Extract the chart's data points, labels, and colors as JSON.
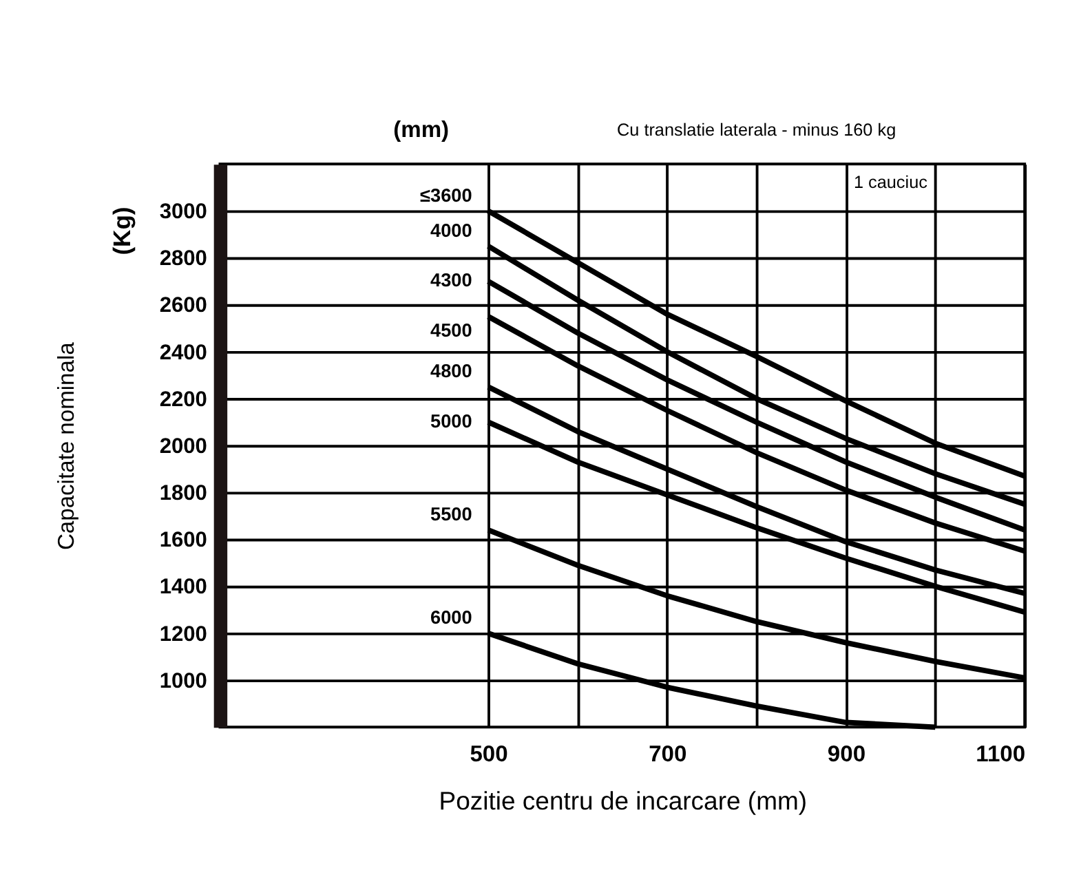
{
  "chart_data": {
    "type": "line",
    "xlabel": "Pozitie centru de incarcare (mm)",
    "ylabel": "Capacitate nominala",
    "annotations": [
      "(Kg)",
      "(mm)",
      "Cu translatie laterala - minus 160 kg",
      "1 cauciuc"
    ],
    "x": [
      500,
      600,
      700,
      800,
      900,
      1000,
      1100
    ],
    "series": [
      {
        "name": "≤3600",
        "color": "#000000",
        "values": [
          3000,
          2780,
          2560,
          2380,
          2190,
          2010,
          1870
        ]
      },
      {
        "name": "4000",
        "color": "#000000",
        "values": [
          2850,
          2620,
          2400,
          2200,
          2030,
          1880,
          1750
        ]
      },
      {
        "name": "4300",
        "color": "#000000",
        "values": [
          2700,
          2480,
          2280,
          2100,
          1930,
          1780,
          1640
        ]
      },
      {
        "name": "4500",
        "color": "#000000",
        "values": [
          2550,
          2340,
          2150,
          1970,
          1810,
          1670,
          1550
        ]
      },
      {
        "name": "4800",
        "color": "#000000",
        "values": [
          2250,
          2060,
          1900,
          1740,
          1590,
          1470,
          1370
        ]
      },
      {
        "name": "5000",
        "color": "#000000",
        "values": [
          2100,
          1930,
          1790,
          1650,
          1520,
          1400,
          1290
        ]
      },
      {
        "name": "5500",
        "color": "#000000",
        "values": [
          1640,
          1490,
          1360,
          1250,
          1160,
          1080,
          1010
        ]
      },
      {
        "name": "6000",
        "color": "#000000",
        "values": [
          1200,
          1070,
          970,
          890,
          820,
          800,
          null
        ]
      }
    ],
    "xlim": [
      200,
      1100
    ],
    "ylim": [
      800,
      3200
    ],
    "xticks": [
      500,
      {
        "value": 600,
        "label": null
      },
      700,
      {
        "value": 800,
        "label": null
      },
      900,
      {
        "value": 1000,
        "label": null
      },
      1100
    ],
    "yticks": [
      1000,
      1200,
      1400,
      1600,
      1800,
      2000,
      2200,
      2400,
      2600,
      2800,
      3000
    ],
    "grid": true,
    "legend": false,
    "marker": "none",
    "line_style": "solid"
  }
}
